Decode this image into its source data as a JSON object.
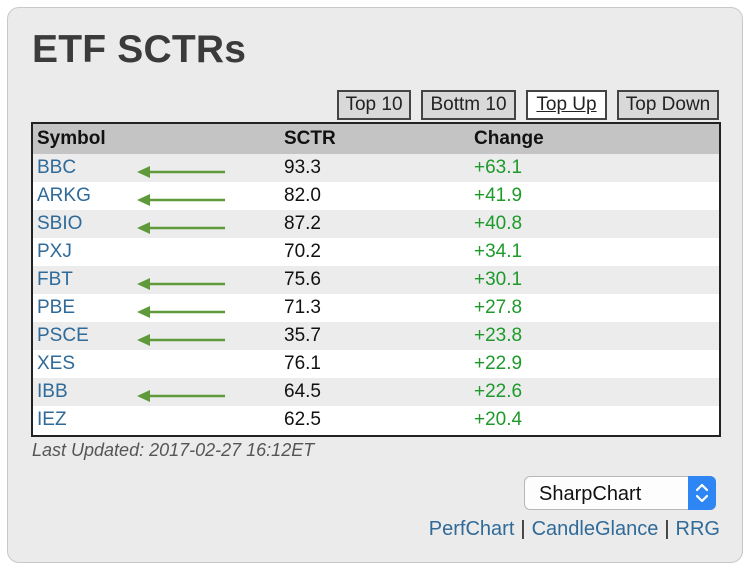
{
  "title": "ETF SCTRs",
  "tabs": [
    {
      "label": "Top 10",
      "active": false
    },
    {
      "label": "Bottm 10",
      "active": false
    },
    {
      "label": "Top Up",
      "active": true
    },
    {
      "label": "Top Down",
      "active": false
    }
  ],
  "table": {
    "headers": {
      "symbol": "Symbol",
      "sctr": "SCTR",
      "change": "Change"
    },
    "rows": [
      {
        "symbol": "BBC",
        "sctr": "93.3",
        "change": "+63.1",
        "arrow": true
      },
      {
        "symbol": "ARKG",
        "sctr": "82.0",
        "change": "+41.9",
        "arrow": true
      },
      {
        "symbol": "SBIO",
        "sctr": "87.2",
        "change": "+40.8",
        "arrow": true
      },
      {
        "symbol": "PXJ",
        "sctr": "70.2",
        "change": "+34.1",
        "arrow": false
      },
      {
        "symbol": "FBT",
        "sctr": "75.6",
        "change": "+30.1",
        "arrow": true
      },
      {
        "symbol": "PBE",
        "sctr": "71.3",
        "change": "+27.8",
        "arrow": true
      },
      {
        "symbol": "PSCE",
        "sctr": "35.7",
        "change": "+23.8",
        "arrow": true
      },
      {
        "symbol": "XES",
        "sctr": "76.1",
        "change": "+22.9",
        "arrow": false
      },
      {
        "symbol": "IBB",
        "sctr": "64.5",
        "change": "+22.6",
        "arrow": true
      },
      {
        "symbol": "IEZ",
        "sctr": "62.5",
        "change": "+20.4",
        "arrow": false
      }
    ]
  },
  "last_updated": "Last Updated: 2017-02-27 16:12ET",
  "chart_select": {
    "value": "SharpChart"
  },
  "links": [
    {
      "label": "PerfChart"
    },
    {
      "label": "CandleGlance"
    },
    {
      "label": "RRG"
    }
  ],
  "colors": {
    "arrow": "#5e9a3a",
    "link": "#2f6a99",
    "positive_change": "#1e9a2a",
    "select_button": "#2d86f3"
  },
  "icons": {
    "row_arrow": "left-arrow-icon",
    "select_toggle": "up-down-chevron-icon"
  }
}
